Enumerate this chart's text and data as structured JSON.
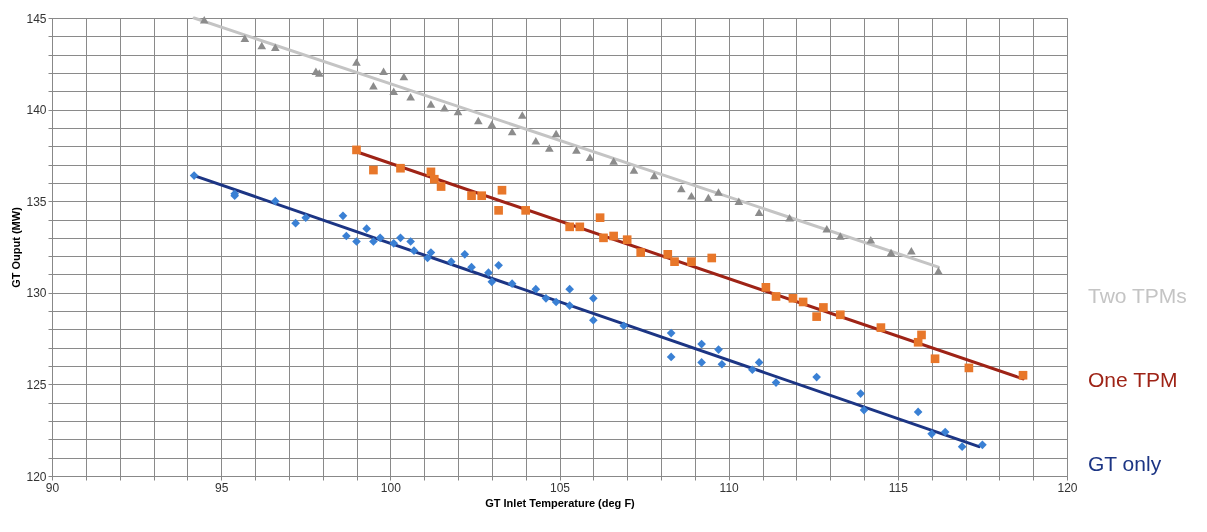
{
  "chart_data": {
    "type": "scatter",
    "xlabel": "GT Inlet Temperature (deg F)",
    "ylabel": "GT Ouput (MW)",
    "xlim": [
      90,
      120
    ],
    "ylim": [
      120,
      145
    ],
    "xticks": [
      90,
      {
        "value": 91,
        "label": null
      },
      {
        "value": 92,
        "label": null
      },
      {
        "value": 93,
        "label": null
      },
      {
        "value": 94,
        "label": null
      },
      95,
      {
        "value": 96,
        "label": null
      },
      {
        "value": 97,
        "label": null
      },
      {
        "value": 98,
        "label": null
      },
      {
        "value": 99,
        "label": null
      },
      100,
      {
        "value": 101,
        "label": null
      },
      {
        "value": 102,
        "label": null
      },
      {
        "value": 103,
        "label": null
      },
      {
        "value": 104,
        "label": null
      },
      105,
      {
        "value": 106,
        "label": null
      },
      {
        "value": 107,
        "label": null
      },
      {
        "value": 108,
        "label": null
      },
      {
        "value": 109,
        "label": null
      },
      110,
      {
        "value": 111,
        "label": null
      },
      {
        "value": 112,
        "label": null
      },
      {
        "value": 113,
        "label": null
      },
      {
        "value": 114,
        "label": null
      },
      115,
      {
        "value": 116,
        "label": null
      },
      {
        "value": 117,
        "label": null
      },
      {
        "value": 118,
        "label": null
      },
      {
        "value": 119,
        "label": null
      },
      120
    ],
    "yticks": [
      120,
      {
        "value": 121,
        "label": null
      },
      {
        "value": 122,
        "label": null
      },
      {
        "value": 123,
        "label": null
      },
      {
        "value": 124,
        "label": null
      },
      125,
      {
        "value": 126,
        "label": null
      },
      {
        "value": 127,
        "label": null
      },
      {
        "value": 128,
        "label": null
      },
      {
        "value": 129,
        "label": null
      },
      130,
      {
        "value": 131,
        "label": null
      },
      {
        "value": 132,
        "label": null
      },
      {
        "value": 133,
        "label": null
      },
      {
        "value": 134,
        "label": null
      },
      135,
      {
        "value": 136,
        "label": null
      },
      {
        "value": 137,
        "label": null
      },
      {
        "value": 138,
        "label": null
      },
      {
        "value": 139,
        "label": null
      },
      140,
      {
        "value": 141,
        "label": null
      },
      {
        "value": 142,
        "label": null
      },
      {
        "value": 143,
        "label": null
      },
      {
        "value": 144,
        "label": null
      },
      145
    ],
    "grid": true,
    "legend": "right",
    "line_style": "solid",
    "series": [
      {
        "marker": "triangle",
        "color": "#8c8c8c",
        "x": [
          94.5,
          95.7,
          96.2,
          96.6,
          97.8,
          97.9,
          99.0,
          99.5,
          99.8,
          100.1,
          100.4,
          100.6,
          101.2,
          101.6,
          102.0,
          102.6,
          103.0,
          103.6,
          103.9,
          104.3,
          104.7,
          104.9,
          105.5,
          105.9,
          106.6,
          107.2,
          107.8,
          108.6,
          108.9,
          109.4,
          109.7,
          110.3,
          110.9,
          111.8,
          112.9,
          113.3,
          114.2,
          114.8,
          115.4,
          116.2
        ],
        "values": [
          144.9,
          143.9,
          143.5,
          143.4,
          142.1,
          142.0,
          142.6,
          141.3,
          142.1,
          141.0,
          141.8,
          140.7,
          140.3,
          140.1,
          139.9,
          139.4,
          139.2,
          138.8,
          139.7,
          138.3,
          137.9,
          138.7,
          137.8,
          137.4,
          137.2,
          136.7,
          136.4,
          135.7,
          135.3,
          135.2,
          135.5,
          135.0,
          134.4,
          134.1,
          133.5,
          133.1,
          132.9,
          132.2,
          132.3,
          131.2
        ]
      },
      {
        "type": "line",
        "marker": "none",
        "name": "Two TPMs",
        "color": "#c4c4c4",
        "x": [
          94.2,
          116.2
        ],
        "values": [
          145.0,
          131.4
        ]
      },
      {
        "marker": "square",
        "color": "#e8772a",
        "x": [
          99.0,
          99.5,
          100.3,
          101.2,
          101.3,
          101.5,
          102.4,
          102.7,
          103.2,
          103.3,
          104.0,
          105.3,
          105.6,
          106.2,
          106.3,
          106.6,
          107.0,
          107.4,
          108.2,
          108.4,
          108.9,
          109.5,
          111.1,
          111.4,
          111.9,
          112.2,
          112.6,
          112.8,
          113.3,
          114.5,
          115.6,
          115.7,
          116.1,
          117.1,
          118.7
        ],
        "values": [
          137.8,
          136.7,
          136.8,
          136.6,
          136.2,
          135.8,
          135.3,
          135.3,
          134.5,
          135.6,
          134.5,
          133.6,
          133.6,
          134.1,
          133.0,
          133.1,
          132.9,
          132.2,
          132.1,
          131.7,
          131.7,
          131.9,
          130.3,
          129.8,
          129.7,
          129.5,
          128.7,
          129.2,
          128.8,
          128.1,
          127.3,
          127.7,
          126.4,
          125.9,
          125.5
        ]
      },
      {
        "type": "line",
        "marker": "none",
        "name": "One TPM",
        "color": "#9e2316",
        "x": [
          99.0,
          118.7
        ],
        "values": [
          137.7,
          125.3
        ]
      },
      {
        "marker": "diamond",
        "color": "#3a80d4",
        "x": [
          94.2,
          95.4,
          95.4,
          96.6,
          97.2,
          97.5,
          98.6,
          98.7,
          99.0,
          99.3,
          99.5,
          99.7,
          100.1,
          100.3,
          100.6,
          100.7,
          101.1,
          101.2,
          101.8,
          102.2,
          102.4,
          102.9,
          103.0,
          103.2,
          103.6,
          104.3,
          104.6,
          104.9,
          105.3,
          105.3,
          106.0,
          106.0,
          106.9,
          108.3,
          108.3,
          109.2,
          109.2,
          109.7,
          109.8,
          110.7,
          110.9,
          111.4,
          112.6,
          113.9,
          114.0,
          115.6,
          116.0,
          116.4,
          116.9,
          117.5
        ],
        "values": [
          136.4,
          135.4,
          135.3,
          135.0,
          133.8,
          134.1,
          134.2,
          133.1,
          132.8,
          133.5,
          132.8,
          133.0,
          132.7,
          133.0,
          132.8,
          132.3,
          131.9,
          132.2,
          131.7,
          132.1,
          131.4,
          131.1,
          130.6,
          131.5,
          130.5,
          130.2,
          129.7,
          129.5,
          130.2,
          129.3,
          129.7,
          128.5,
          128.2,
          127.8,
          126.5,
          127.2,
          126.2,
          126.9,
          126.1,
          125.8,
          126.2,
          125.1,
          125.4,
          124.5,
          123.6,
          123.5,
          122.3,
          122.4,
          121.6,
          121.7
        ]
      },
      {
        "type": "line",
        "marker": "none",
        "name": "GT only",
        "color": "#1c3584",
        "x": [
          94.2,
          117.4
        ],
        "values": [
          136.4,
          121.6
        ]
      }
    ]
  }
}
